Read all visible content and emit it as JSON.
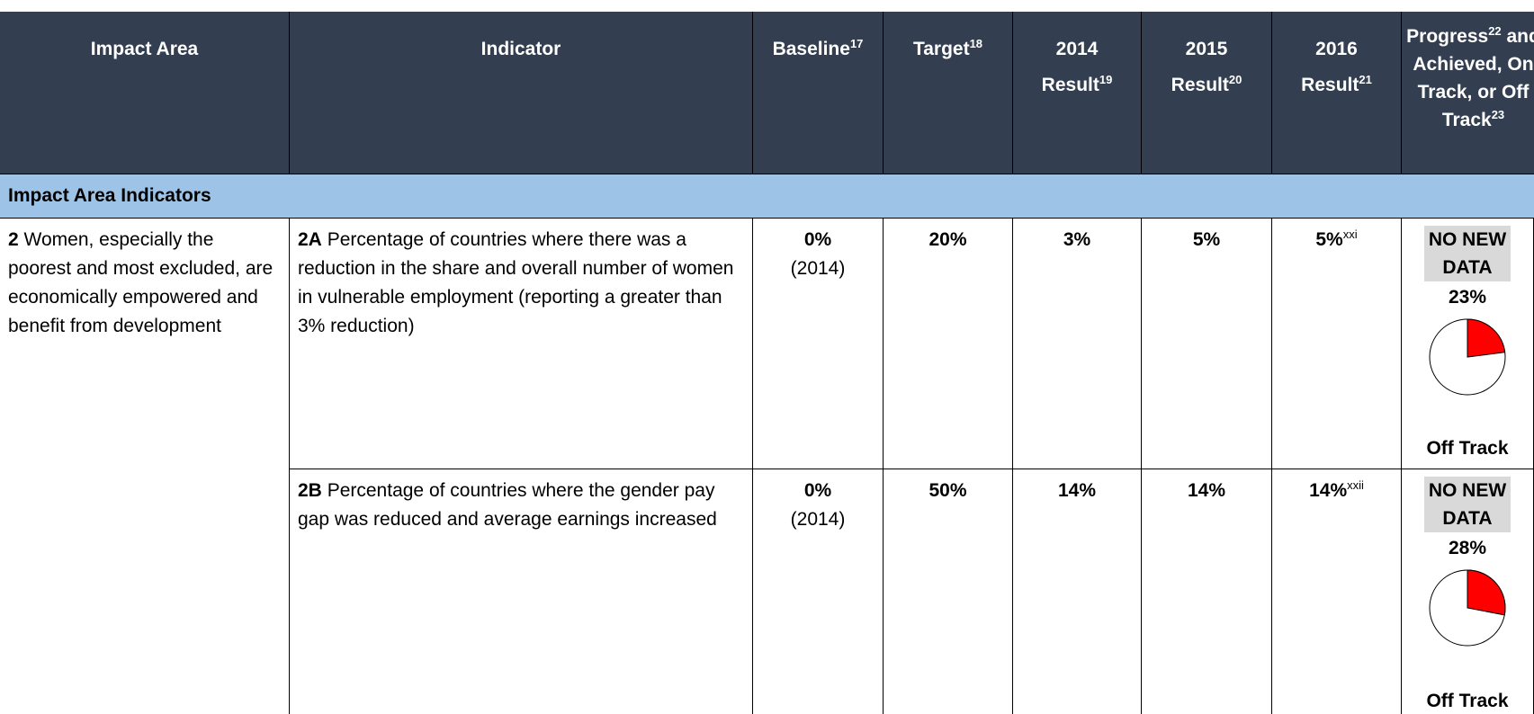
{
  "header": {
    "impact_area": "Impact Area",
    "indicator": "Indicator",
    "baseline": {
      "text": "Baseline",
      "note": "17"
    },
    "target": {
      "text": "Target",
      "note": "18"
    },
    "result_2014": {
      "year": "2014",
      "text": "Result",
      "note": "19"
    },
    "result_2015": {
      "year": "2015",
      "text": "Result",
      "note": "20"
    },
    "result_2016": {
      "year": "2016",
      "text": "Result",
      "note": "21"
    },
    "progress": {
      "text": "Progress",
      "note": "22",
      "rest": "and Achieved, On Track, or Off Track",
      "note2": "23"
    }
  },
  "section": "Impact Area Indicators",
  "impact": {
    "code": "2",
    "text": "Women, especially the poorest and most excluded, are economically empowered and benefit from development"
  },
  "rows": [
    {
      "code": "2A",
      "indicator": "Percentage of countries where there was a reduction in the share and overall number of women in vulnerable employment (reporting a greater than 3% reduction)",
      "baseline": "0%",
      "baseline_year": "(2014)",
      "target": "20%",
      "r2014": "3%",
      "r2015": "5%",
      "r2016": "5%",
      "r2016_note": "xxi",
      "status": "NO NEW DATA",
      "progress": {
        "value": 23,
        "label": "23%"
      },
      "track": "Off Track"
    },
    {
      "code": "2B",
      "indicator": "Percentage of countries where the gender pay gap was reduced and average earnings increased",
      "baseline": "0%",
      "baseline_year": "(2014)",
      "target": "50%",
      "r2014": "14%",
      "r2015": "14%",
      "r2016": "14%",
      "r2016_note": "xxii",
      "status": "NO NEW DATA",
      "progress": {
        "value": 28,
        "label": "28%"
      },
      "track": "Off Track"
    }
  ]
}
